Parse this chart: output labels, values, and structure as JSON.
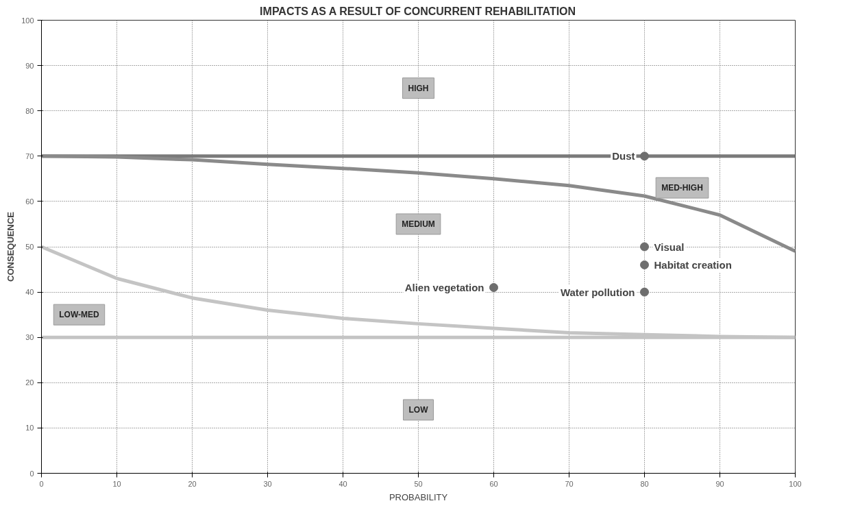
{
  "chart_data": {
    "type": "scatter",
    "title": "IMPACTS AS A RESULT OF CONCURRENT REHABILITATION",
    "xlabel": "PROBABILITY",
    "ylabel": "CONSEQUENCE",
    "xlim": [
      0,
      100
    ],
    "ylim": [
      0,
      100
    ],
    "xticks": [
      0,
      10,
      20,
      30,
      40,
      50,
      60,
      70,
      80,
      90,
      100
    ],
    "yticks": [
      0,
      10,
      20,
      30,
      40,
      50,
      60,
      70,
      80,
      90,
      100
    ],
    "grid": true,
    "series": [
      {
        "marker": "circle",
        "color": "#6e6e6e",
        "x": [
          80,
          80,
          80,
          80,
          60
        ],
        "values": [
          70,
          50,
          46,
          40,
          41
        ],
        "value_labels": [
          "Dust",
          "Visual",
          "Habitat creation",
          "Water pollution",
          "Alien vegetation"
        ]
      },
      {
        "type": "line",
        "color": "#8a8a8a",
        "x": [
          0,
          10,
          20,
          30,
          40,
          50,
          60,
          70,
          80,
          90,
          100
        ],
        "values": [
          70,
          69.8,
          69.2,
          68.2,
          67.3,
          66.3,
          65,
          63.5,
          61.2,
          57,
          49
        ]
      },
      {
        "type": "line",
        "color": "#c4c4c4",
        "x": [
          0,
          10,
          20,
          30,
          40,
          50,
          60,
          70,
          80,
          90,
          100
        ],
        "values": [
          50,
          43,
          38.7,
          36,
          34.2,
          33,
          32,
          31,
          30.6,
          30.2,
          30
        ]
      }
    ],
    "ref_lines": [
      {
        "axis": "y",
        "value": 70,
        "color": "#7a7a7a"
      },
      {
        "axis": "y",
        "value": 30,
        "color": "#c4c4c4"
      }
    ],
    "annotations": [
      "HIGH",
      "MED-HIGH",
      "MEDIUM",
      "LOW-MED",
      "LOW"
    ]
  }
}
